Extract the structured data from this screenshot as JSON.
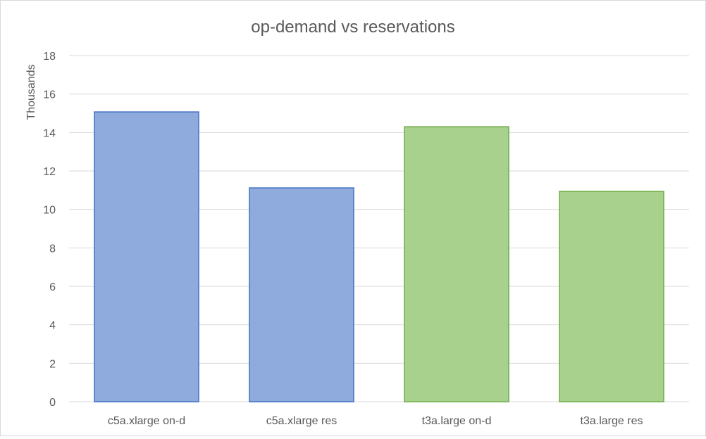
{
  "chart_data": {
    "type": "bar",
    "title": "op-demand vs reservations",
    "xlabel": "",
    "ylabel": "Thousands",
    "ylim": [
      0,
      18
    ],
    "yticks": [
      "0",
      "2",
      "4",
      "6",
      "8",
      "10",
      "12",
      "14",
      "16",
      "18"
    ],
    "categories": [
      "c5a.xlarge on-d",
      "c5a.xlarge res",
      "t3a.large on-d",
      "t3a.large res"
    ],
    "values": [
      15.07,
      11.12,
      14.3,
      10.94
    ],
    "bar_colors": [
      {
        "fill": "#8faadc",
        "stroke": "#4472c4"
      },
      {
        "fill": "#8faadc",
        "stroke": "#4472c4"
      },
      {
        "fill": "#a9d18e",
        "stroke": "#70ad47"
      },
      {
        "fill": "#a9d18e",
        "stroke": "#70ad47"
      }
    ],
    "grid": true,
    "legend": "none"
  }
}
